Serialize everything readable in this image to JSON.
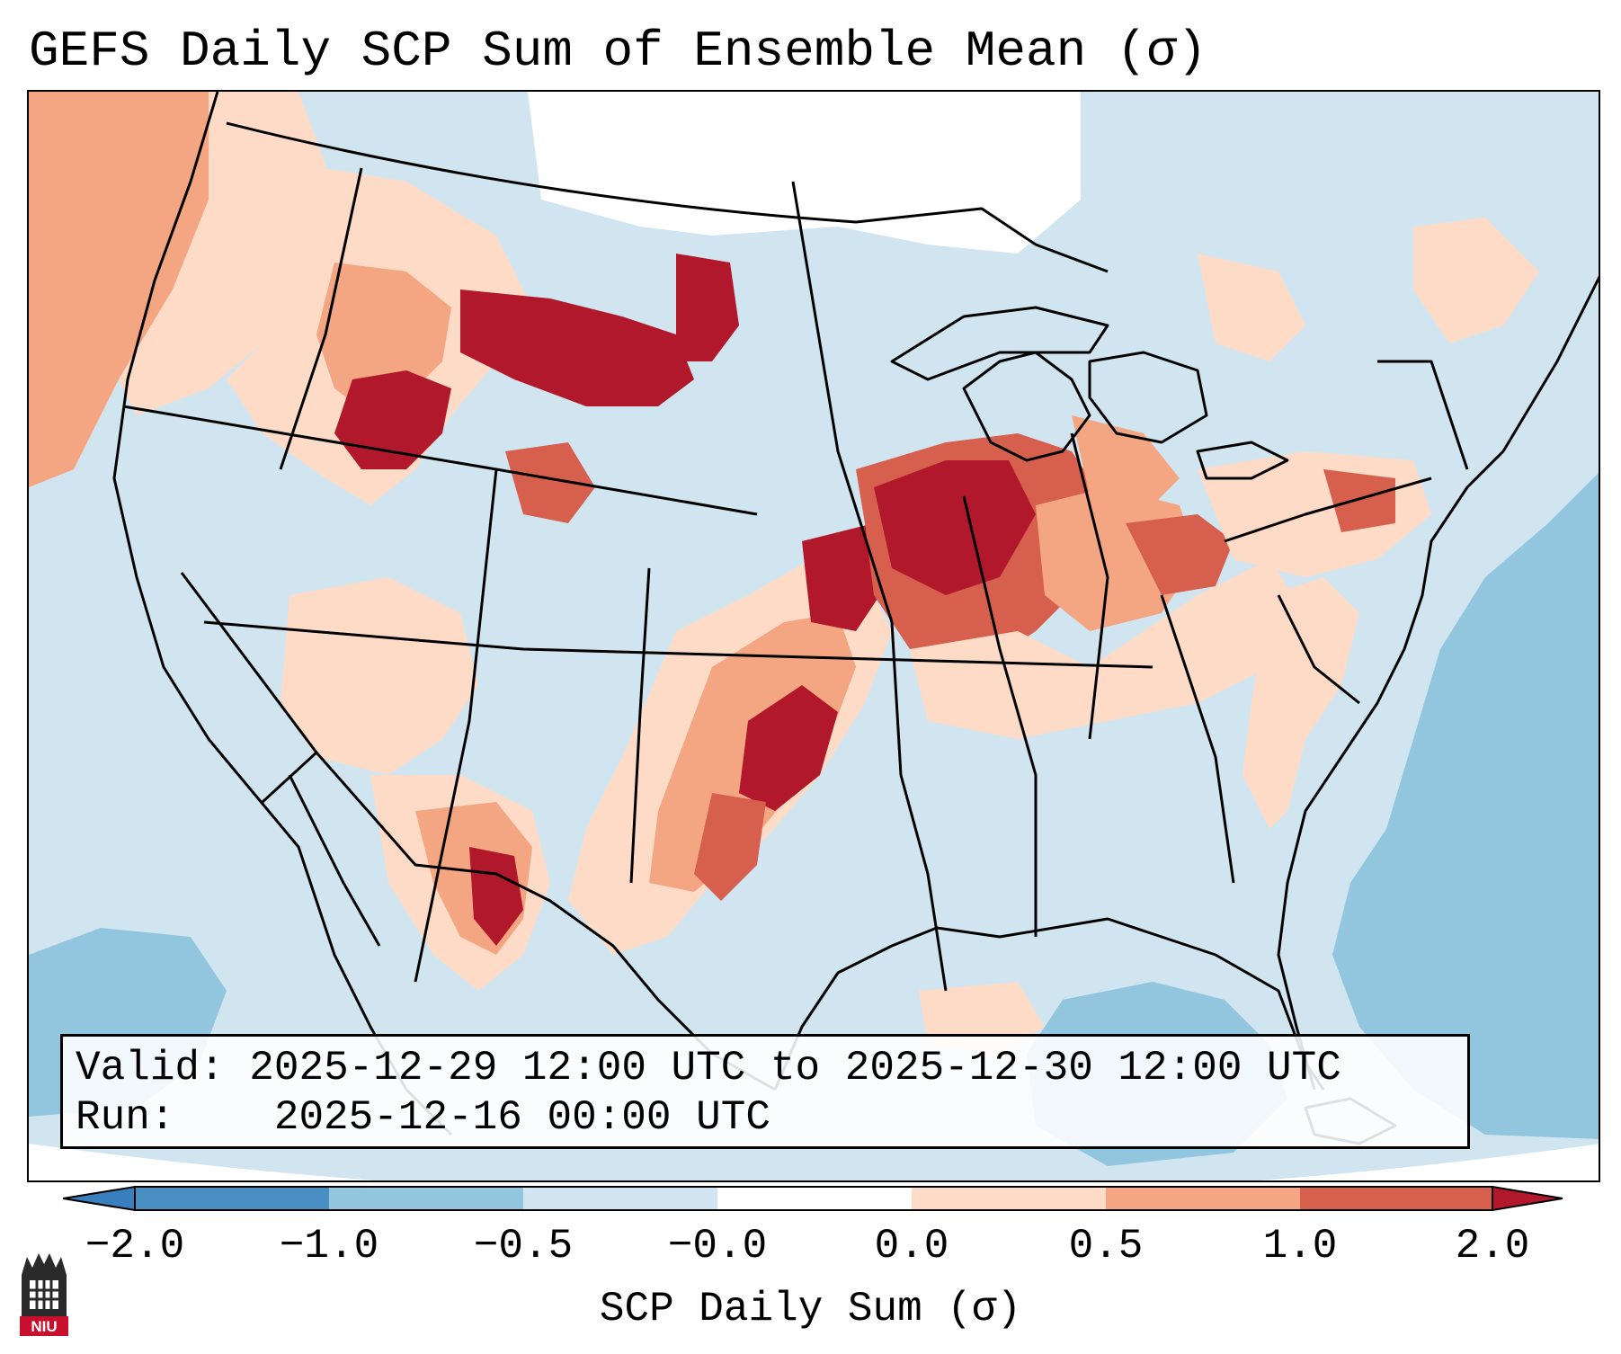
{
  "title": "GEFS Daily SCP Sum of Ensemble Mean (σ)",
  "map": {
    "projection": "Lambert conformal, CONUS",
    "field": "SCP daily sum anomaly"
  },
  "info": {
    "valid_label": "Valid:",
    "valid_value": "2025-12-29 12:00 UTC to 2025-12-30 12:00 UTC",
    "run_label": "Run:",
    "run_value": "2025-12-16 00:00 UTC"
  },
  "colorbar": {
    "label": "SCP Daily Sum (σ)",
    "ticks": [
      "−2.0",
      "−1.0",
      "−0.5",
      "−0.0",
      "0.0",
      "0.5",
      "1.0",
      "2.0"
    ],
    "colors": {
      "below_min": "#3a7fbd",
      "neg_2_1": "#4a8fc4",
      "neg_1_05": "#92c5de",
      "neg_05_0": "#d1e5f0",
      "zero": "#ffffff",
      "pos_0_05": "#fddbc7",
      "pos_05_1": "#f4a582",
      "pos_1_2": "#d6604d",
      "above_max": "#b2182b"
    }
  },
  "logo": {
    "text": "NIU"
  }
}
